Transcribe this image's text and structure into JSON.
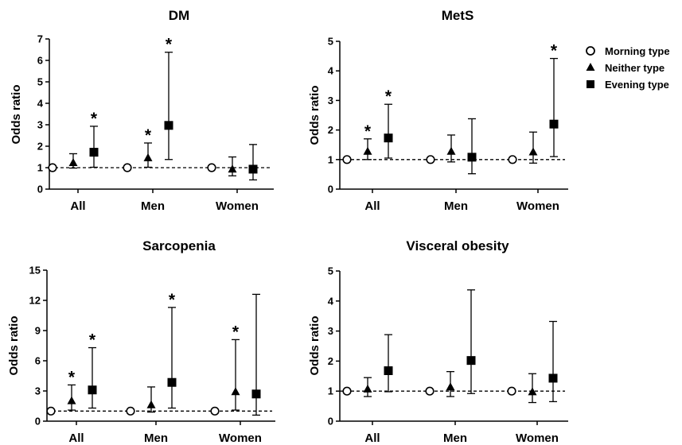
{
  "legend": [
    {
      "label": "Morning type",
      "marker": "open-circle"
    },
    {
      "label": "Neither type",
      "marker": "filled-triangle"
    },
    {
      "label": "Evening type",
      "marker": "filled-square"
    }
  ],
  "chart_data": [
    {
      "type": "scatter",
      "title": "DM",
      "ylabel": "Odds ratio",
      "xlabel": "",
      "ylim": [
        0,
        7
      ],
      "yticks": [
        0,
        1,
        2,
        3,
        4,
        5,
        6,
        7
      ],
      "categories": [
        "All",
        "Men",
        "Women"
      ],
      "reference_line": 1,
      "series": [
        {
          "name": "Morning type",
          "values": [
            1,
            1,
            1
          ],
          "lower": [
            null,
            null,
            null
          ],
          "upper": [
            null,
            null,
            null
          ],
          "significant": [
            false,
            false,
            false
          ]
        },
        {
          "name": "Neither type",
          "values": [
            1.22,
            1.45,
            0.92
          ],
          "lower": [
            0.98,
            1.02,
            0.62
          ],
          "upper": [
            1.65,
            2.15,
            1.5
          ],
          "significant": [
            false,
            true,
            false
          ]
        },
        {
          "name": "Evening type",
          "values": [
            1.72,
            2.97,
            0.93
          ],
          "lower": [
            1.02,
            1.38,
            0.43
          ],
          "upper": [
            2.93,
            6.38,
            2.08
          ],
          "significant": [
            true,
            true,
            false
          ]
        }
      ]
    },
    {
      "type": "scatter",
      "title": "MetS",
      "ylabel": "Odds ratio",
      "xlabel": "",
      "ylim": [
        0,
        5
      ],
      "yticks": [
        0,
        1,
        2,
        3,
        4,
        5
      ],
      "categories": [
        "All",
        "Men",
        "Women"
      ],
      "reference_line": 1,
      "series": [
        {
          "name": "Morning type",
          "values": [
            1,
            1,
            1
          ],
          "lower": [
            null,
            null,
            null
          ],
          "upper": [
            null,
            null,
            null
          ],
          "significant": [
            false,
            false,
            false
          ]
        },
        {
          "name": "Neither type",
          "values": [
            1.27,
            1.27,
            1.25
          ],
          "lower": [
            1.0,
            0.92,
            0.88
          ],
          "upper": [
            1.7,
            1.83,
            1.93
          ],
          "significant": [
            true,
            false,
            false
          ]
        },
        {
          "name": "Evening type",
          "values": [
            1.73,
            1.08,
            2.2
          ],
          "lower": [
            1.05,
            0.52,
            1.1
          ],
          "upper": [
            2.87,
            2.38,
            4.42
          ],
          "significant": [
            true,
            false,
            true
          ]
        }
      ]
    },
    {
      "type": "scatter",
      "title": "Sarcopenia",
      "ylabel": "Odds ratio",
      "xlabel": "",
      "ylim": [
        0,
        15
      ],
      "yticks": [
        0,
        3,
        6,
        9,
        12,
        15
      ],
      "categories": [
        "All",
        "Men",
        "Women"
      ],
      "reference_line": 1,
      "series": [
        {
          "name": "Morning type",
          "values": [
            1,
            1,
            1
          ],
          "lower": [
            null,
            null,
            null
          ],
          "upper": [
            null,
            null,
            null
          ],
          "significant": [
            false,
            false,
            false
          ]
        },
        {
          "name": "Neither type",
          "values": [
            2.0,
            1.6,
            2.9
          ],
          "lower": [
            1.1,
            0.9,
            1.1
          ],
          "upper": [
            3.6,
            3.4,
            8.1
          ],
          "significant": [
            true,
            false,
            true
          ]
        },
        {
          "name": "Evening type",
          "values": [
            3.1,
            3.85,
            2.7
          ],
          "lower": [
            1.3,
            1.3,
            0.6
          ],
          "upper": [
            7.3,
            11.3,
            12.6
          ],
          "significant": [
            true,
            true,
            false
          ]
        }
      ]
    },
    {
      "type": "scatter",
      "title": "Visceral obesity",
      "ylabel": "Odds ratio",
      "xlabel": "",
      "ylim": [
        0,
        5
      ],
      "yticks": [
        0,
        1,
        2,
        3,
        4,
        5
      ],
      "categories": [
        "All",
        "Men",
        "Women"
      ],
      "reference_line": 1,
      "series": [
        {
          "name": "Morning type",
          "values": [
            1,
            1,
            1
          ],
          "lower": [
            null,
            null,
            null
          ],
          "upper": [
            null,
            null,
            null
          ],
          "significant": [
            false,
            false,
            false
          ]
        },
        {
          "name": "Neither type",
          "values": [
            1.06,
            1.13,
            0.97
          ],
          "lower": [
            0.82,
            0.82,
            0.62
          ],
          "upper": [
            1.45,
            1.65,
            1.58
          ],
          "significant": [
            false,
            false,
            false
          ]
        },
        {
          "name": "Evening type",
          "values": [
            1.68,
            2.02,
            1.43
          ],
          "lower": [
            0.98,
            0.92,
            0.65
          ],
          "upper": [
            2.88,
            4.37,
            3.32
          ],
          "significant": [
            false,
            false,
            false
          ]
        }
      ]
    }
  ]
}
